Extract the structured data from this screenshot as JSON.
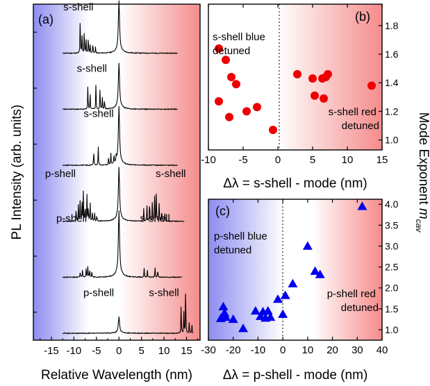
{
  "figure": {
    "ylabel_left": "PL Intensity (arb. units)",
    "ylabel_right_main": "Mode Exponent ",
    "ylabel_right_m": "m",
    "ylabel_right_sub": "cav",
    "colors": {
      "blue": "#0000ee",
      "red": "#ee0000",
      "blue_bg": "#8c8cf0",
      "red_bg": "#f58c8c"
    }
  },
  "chart_data": [
    {
      "id": "a",
      "type": "line",
      "panel_label": "(a)",
      "xlabel": "Relative Wavelength (nm)",
      "ylabel": "PL Intensity (arb. units)",
      "xlim": [
        -19,
        18
      ],
      "x_ticks": [
        -15,
        -10,
        -5,
        0,
        5,
        10,
        15
      ],
      "x_tick_labels": [
        "-15",
        "-10",
        "-5",
        "0",
        "5",
        "10",
        "15"
      ],
      "spectra": [
        {
          "x_start": -12.5,
          "x_end": 13,
          "mode": {
            "x": 0,
            "h": 70
          },
          "peaks": [
            [
              -8.6,
              58
            ],
            [
              -8.2,
              28
            ],
            [
              -7.7,
              38
            ],
            [
              -7.3,
              22
            ],
            [
              -6.8,
              26
            ],
            [
              -6.4,
              14
            ],
            [
              -5.8,
              18
            ],
            [
              -5.2,
              10
            ]
          ],
          "labels": [
            {
              "text": "s-shell",
              "x": -9
            }
          ]
        },
        {
          "x_start": -12.5,
          "x_end": 13,
          "mode": {
            "x": 0,
            "h": 62
          },
          "peaks": [
            [
              -6.9,
              38
            ],
            [
              -6.4,
              24
            ],
            [
              -5.1,
              40
            ],
            [
              -4.2,
              32
            ],
            [
              -3.7,
              20
            ],
            [
              -3.2,
              14
            ]
          ],
          "labels": [
            {
              "text": "s-shell",
              "x": -6
            }
          ]
        },
        {
          "x_start": -12.5,
          "x_end": 13,
          "mode": {
            "x": 0,
            "h": 78
          },
          "peaks": [
            [
              -5.6,
              22
            ],
            [
              -4.6,
              30
            ],
            [
              -2.3,
              12
            ],
            [
              -1.8,
              16
            ],
            [
              -1.1,
              14
            ],
            [
              -0.6,
              10
            ]
          ],
          "labels": [
            {
              "text": "s-shell",
              "x": -4.5
            }
          ]
        },
        {
          "x_start": -12.5,
          "x_end": 14.5,
          "mode": {
            "x": 0,
            "h": 72
          },
          "peaks": [
            [
              -9.5,
              20
            ],
            [
              -9,
              24
            ],
            [
              -8.6,
              40
            ],
            [
              -8.2,
              30
            ],
            [
              -7.9,
              44
            ],
            [
              -7.5,
              26
            ],
            [
              -7.1,
              38
            ],
            [
              -6.8,
              22
            ],
            [
              -6.4,
              30
            ],
            [
              -5.9,
              16
            ],
            [
              -5.4,
              12
            ],
            [
              -4.9,
              10
            ],
            [
              5.5,
              18
            ],
            [
              6.2,
              26
            ],
            [
              6.8,
              34
            ],
            [
              7.4,
              28
            ],
            [
              7.9,
              48
            ],
            [
              8.3,
              40
            ],
            [
              8.9,
              30
            ],
            [
              9.5,
              18
            ],
            [
              10.2,
              12
            ]
          ],
          "labels": [
            {
              "text": "p-shell",
              "x": -13
            },
            {
              "text": "s-shell",
              "x": 11.5
            }
          ]
        },
        {
          "x_start": -12.5,
          "x_end": 14,
          "mode": {
            "x": 0,
            "h": 88
          },
          "peaks": [
            [
              -8.6,
              8
            ],
            [
              -8.1,
              10
            ],
            [
              -7.3,
              14
            ],
            [
              -6.9,
              18
            ],
            [
              -6.5,
              12
            ],
            [
              -6.0,
              8
            ],
            [
              5.6,
              14
            ],
            [
              6.3,
              10
            ],
            [
              8.0,
              16
            ],
            [
              8.6,
              12
            ]
          ],
          "labels": [
            {
              "text": "p-shell",
              "x": -10.5
            },
            {
              "text": "s-shell",
              "x": 8
            }
          ]
        },
        {
          "x_start": -12.5,
          "x_end": 16.5,
          "mode": {
            "x": 0,
            "h": 22
          },
          "peaks": [
            [
              13.8,
              44
            ],
            [
              14.4,
              32
            ],
            [
              14.8,
              76
            ],
            [
              15.6,
              18
            ],
            [
              16.2,
              12
            ]
          ],
          "labels": [
            {
              "text": "p-shell",
              "x": -4.5
            },
            {
              "text": "s-shell",
              "x": 10
            }
          ]
        }
      ]
    },
    {
      "id": "b",
      "type": "scatter",
      "panel_label": "(b)",
      "xlabel": "Δλ = s-shell - mode (nm)",
      "ylabel": "Mode Exponent m_cav",
      "xlim": [
        -10,
        15
      ],
      "ylim": [
        0.93,
        1.95
      ],
      "x_ticks": [
        -10,
        -5,
        0,
        5,
        10,
        15
      ],
      "x_tick_labels": [
        "-10",
        "-5",
        "0",
        "5",
        "10",
        "15"
      ],
      "y_ticks": [
        1.0,
        1.2,
        1.4,
        1.6,
        1.8
      ],
      "y_tick_labels": [
        "1.0",
        "1.2",
        "1.4",
        "1.6",
        "1.8"
      ],
      "marker": "circle",
      "color": "#ee0000",
      "annotations": [
        {
          "lines": [
            "s-shell blue",
            "detuned"
          ],
          "anchor": "start"
        },
        {
          "lines": [
            "s-shell red",
            "detuned"
          ],
          "anchor": "end"
        }
      ],
      "points": [
        [
          -8.5,
          1.64
        ],
        [
          -7.5,
          1.56
        ],
        [
          -8.5,
          1.27
        ],
        [
          -6.7,
          1.44
        ],
        [
          -6.0,
          1.39
        ],
        [
          -7.0,
          1.16
        ],
        [
          -4.5,
          1.2
        ],
        [
          -3.0,
          1.23
        ],
        [
          -0.7,
          1.07
        ],
        [
          2.8,
          1.46
        ],
        [
          5.0,
          1.43
        ],
        [
          6.4,
          1.43
        ],
        [
          7.2,
          1.46
        ],
        [
          6.9,
          1.44
        ],
        [
          5.3,
          1.31
        ],
        [
          6.6,
          1.29
        ],
        [
          13.5,
          1.38
        ]
      ]
    },
    {
      "id": "c",
      "type": "scatter",
      "panel_label": "(c)",
      "xlabel": "Δλ = p-shell - mode (nm)",
      "ylabel": "Mode Exponent m_cav",
      "xlim": [
        -30,
        40
      ],
      "ylim": [
        0.75,
        4.12
      ],
      "x_ticks": [
        -30,
        -20,
        -10,
        0,
        10,
        20,
        30,
        40
      ],
      "x_tick_labels": [
        "-30",
        "-20",
        "-10",
        "0",
        "10",
        "20",
        "30",
        "40"
      ],
      "y_ticks": [
        1.0,
        1.5,
        2.0,
        2.5,
        3.0,
        3.5,
        4.0
      ],
      "y_tick_labels": [
        "1.0",
        "1.5",
        "2.0",
        "2.5",
        "3.0",
        "3.5",
        "4.0"
      ],
      "marker": "triangle",
      "color": "#0000ee",
      "annotations": [
        {
          "lines": [
            "p-shell blue",
            "detuned"
          ],
          "anchor": "start"
        },
        {
          "lines": [
            "p-shell red",
            "detuned"
          ],
          "anchor": "end"
        }
      ],
      "points": [
        [
          -24,
          1.55
        ],
        [
          -23.5,
          1.4
        ],
        [
          -25,
          1.27
        ],
        [
          -23,
          1.3
        ],
        [
          -20,
          1.25
        ],
        [
          -16,
          1.03
        ],
        [
          -11,
          1.45
        ],
        [
          -9,
          1.32
        ],
        [
          -8,
          1.43
        ],
        [
          -7,
          1.28
        ],
        [
          -6,
          1.45
        ],
        [
          -5,
          1.3
        ],
        [
          -2,
          1.73
        ],
        [
          0,
          1.37
        ],
        [
          1,
          1.82
        ],
        [
          4,
          2.1
        ],
        [
          10,
          3.0
        ],
        [
          13,
          2.4
        ],
        [
          15,
          2.32
        ],
        [
          32,
          3.95
        ]
      ]
    }
  ]
}
